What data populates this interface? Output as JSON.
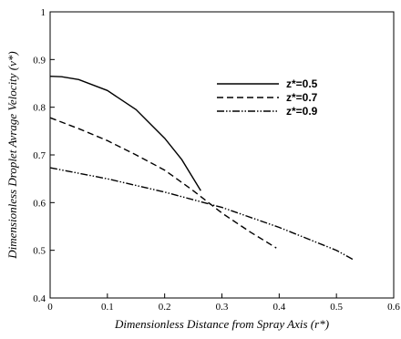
{
  "chart_data": {
    "type": "line",
    "title": "",
    "xlabel": "Dimensionless Distance from Spray Axis (r*)",
    "ylabel": "Dimensionless Droplet Avrage Velocity (v*)",
    "xlim": [
      0,
      0.6
    ],
    "ylim": [
      0.4,
      1.0
    ],
    "xticks": [
      "0",
      "0.1",
      "0.2",
      "0.3",
      "0.4",
      "0.5",
      "0.6"
    ],
    "yticks": [
      "0.4",
      "0.5",
      "0.6",
      "0.7",
      "0.8",
      "0.9",
      "1"
    ],
    "grid": false,
    "legend_position": "top-right",
    "series": [
      {
        "name": "z*=0.5",
        "style": "solid",
        "x": [
          0,
          0.02,
          0.05,
          0.1,
          0.15,
          0.2,
          0.23,
          0.263
        ],
        "y": [
          0.865,
          0.864,
          0.858,
          0.835,
          0.795,
          0.735,
          0.69,
          0.625
        ]
      },
      {
        "name": "z*=0.7",
        "style": "dashed",
        "x": [
          0,
          0.05,
          0.1,
          0.15,
          0.2,
          0.25,
          0.3,
          0.35,
          0.395
        ],
        "y": [
          0.778,
          0.755,
          0.73,
          0.7,
          0.668,
          0.625,
          0.578,
          0.538,
          0.505
        ]
      },
      {
        "name": "z*=0.9",
        "style": "dashdotdot",
        "x": [
          0,
          0.1,
          0.2,
          0.3,
          0.4,
          0.5,
          0.53
        ],
        "y": [
          0.673,
          0.65,
          0.622,
          0.59,
          0.548,
          0.5,
          0.48
        ]
      }
    ]
  }
}
